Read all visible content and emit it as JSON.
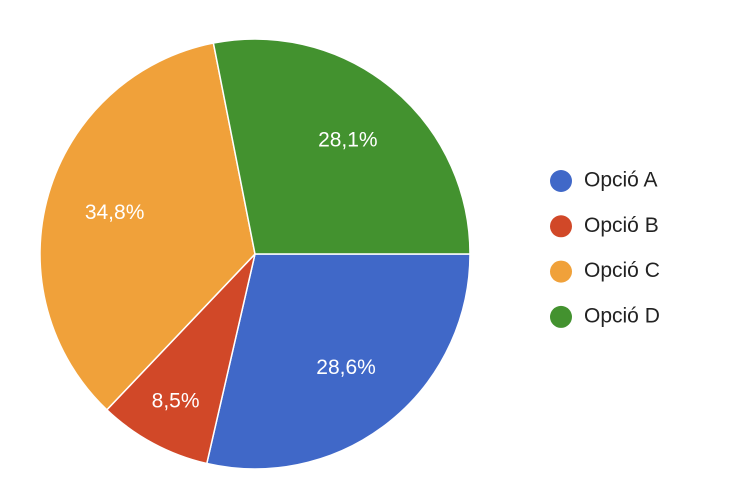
{
  "chart_data": {
    "type": "pie",
    "categories": [
      "Opció A",
      "Opció B",
      "Opció C",
      "Opció D"
    ],
    "values": [
      28.6,
      8.5,
      34.8,
      28.1
    ],
    "value_labels": [
      "28,6%",
      "8,5%",
      "34,8%",
      "28,1%"
    ],
    "colors": [
      "#4068c8",
      "#d14828",
      "#f0a13a",
      "#43922f"
    ],
    "legend": "right"
  }
}
